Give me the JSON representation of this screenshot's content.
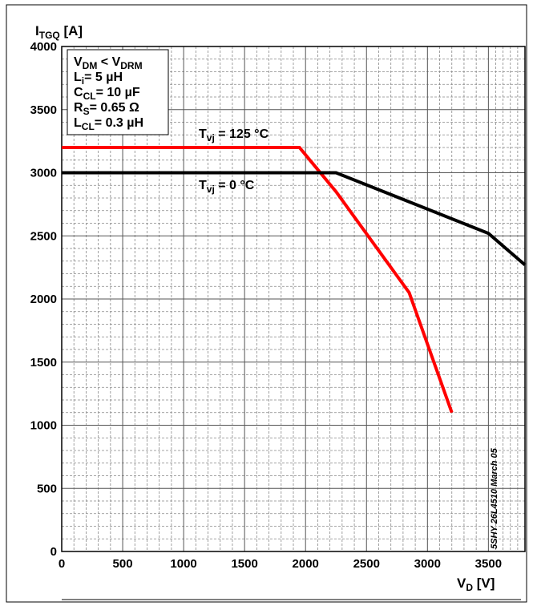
{
  "chart_data": {
    "type": "line",
    "y_label": [
      "I",
      "TGQ",
      " [A]"
    ],
    "x_label": [
      "V",
      "D",
      " [V]"
    ],
    "xlim": [
      0,
      3800
    ],
    "ylim": [
      0,
      4000
    ],
    "xticks": [
      0,
      500,
      1000,
      1500,
      2000,
      2500,
      3000,
      3500
    ],
    "yticks": [
      0,
      500,
      1000,
      1500,
      2000,
      2500,
      3000,
      3500,
      4000
    ],
    "grid": true,
    "conditions": [
      [
        "V",
        "DM",
        " < V",
        "DRM"
      ],
      [
        "L",
        "i",
        "= 5 µH"
      ],
      [
        "C",
        "CL",
        "= 10 µF"
      ],
      [
        "R",
        "S",
        "= 0.65 Ω"
      ],
      [
        "L",
        "CL",
        "= 0.3 µH"
      ]
    ],
    "series": [
      {
        "name": [
          "T",
          "vj",
          " = 125 °C"
        ],
        "color": "#ff0000",
        "x": [
          0,
          1950,
          2250,
          2850,
          3200
        ],
        "values": [
          3200,
          3200,
          2850,
          2050,
          1100
        ]
      },
      {
        "name": [
          "T",
          "vj",
          " = 0 °C"
        ],
        "color": "#000000",
        "x": [
          0,
          2250,
          3500,
          3800
        ],
        "values": [
          3000,
          3000,
          2520,
          2270
        ]
      }
    ],
    "side_note": "5SHY 26L4510 March 05"
  }
}
